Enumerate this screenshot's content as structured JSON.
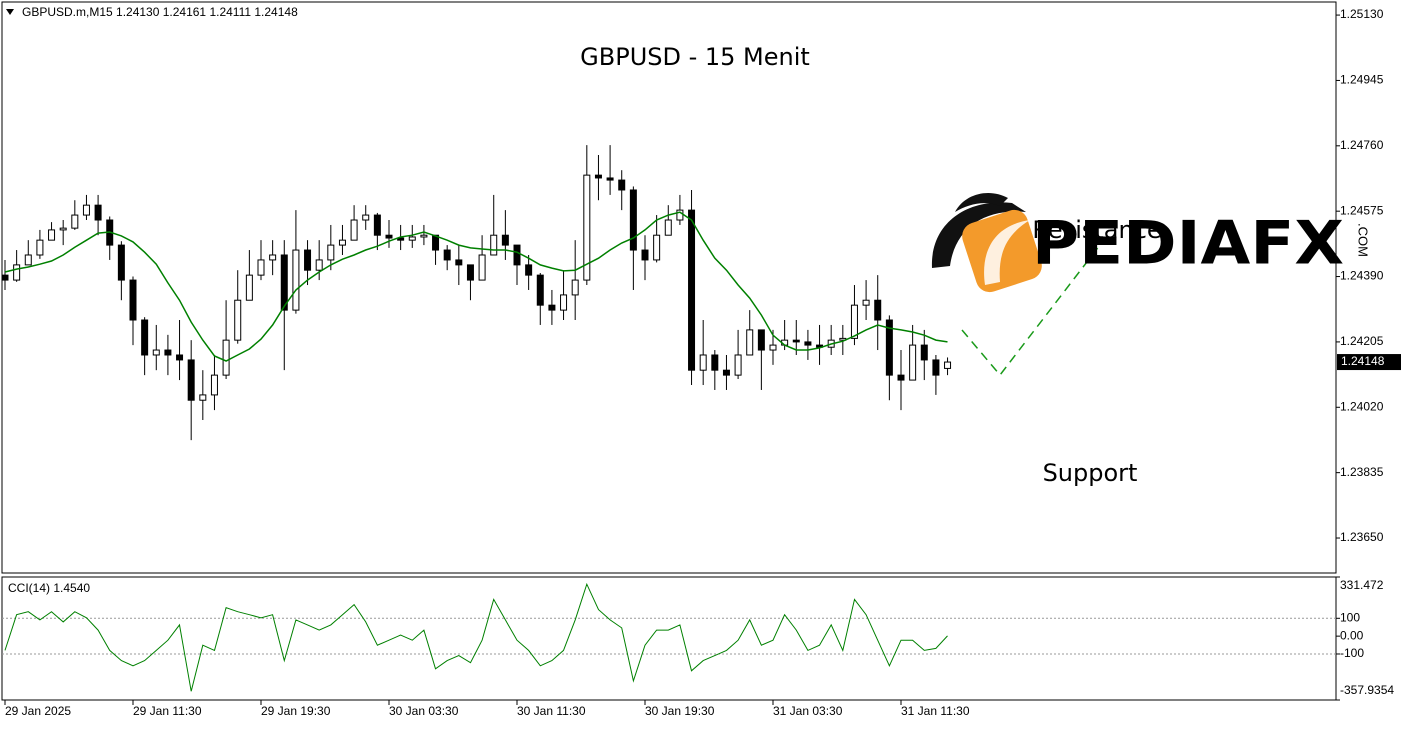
{
  "chart_data": [
    {
      "type": "candlestick",
      "header": "GBPUSD.m,M15  1.24130 1.24161 1.24111 1.24148",
      "title": "GBPUSD - 15 Menit",
      "annotations": [
        "Resistance",
        "Support"
      ],
      "watermark": "PEDIAFX",
      "watermark_suffix": ".COM",
      "categories": [
        "29 Jan 2025",
        null,
        null,
        null,
        null,
        null,
        null,
        null,
        null,
        null,
        null,
        "29 Jan 11:30",
        null,
        null,
        null,
        null,
        null,
        null,
        null,
        null,
        null,
        null,
        "29 Jan 19:30",
        null,
        null,
        null,
        null,
        null,
        null,
        null,
        null,
        null,
        null,
        "30 Jan 03:30",
        null,
        null,
        null,
        null,
        null,
        null,
        null,
        null,
        null,
        null,
        "30 Jan 11:30",
        null,
        null,
        null,
        null,
        null,
        null,
        null,
        null,
        null,
        null,
        "30 Jan 19:30",
        null,
        null,
        null,
        null,
        null,
        null,
        null,
        null,
        null,
        null,
        "31 Jan 03:30",
        null,
        null,
        null,
        null,
        null,
        null,
        null,
        null,
        null,
        null,
        "31 Jan 11:30",
        null,
        null,
        null,
        null
      ],
      "open": [
        1.24394,
        1.2438,
        1.24423,
        1.24451,
        1.24493,
        1.24522,
        1.24527,
        1.24564,
        1.24592,
        1.2455,
        1.24479,
        1.2438,
        1.24267,
        1.24168,
        1.24182,
        1.24168,
        1.24154,
        1.2404,
        1.24055,
        1.24111,
        1.2421,
        1.24323,
        1.24394,
        1.24437,
        1.24451,
        1.24295,
        1.24465,
        1.24408,
        1.24437,
        1.24479,
        1.24493,
        1.2455,
        1.24564,
        1.24507,
        1.24499,
        1.24493,
        1.24502,
        1.24507,
        1.24465,
        1.24437,
        1.24423,
        1.2438,
        1.24451,
        1.24507,
        1.24479,
        1.24423,
        1.24394,
        1.24309,
        1.24295,
        1.24338,
        1.2438,
        1.24677,
        1.24669,
        1.24663,
        1.24635,
        1.24465,
        1.24437,
        1.24507,
        1.2455,
        1.24578,
        1.24125,
        1.24168,
        1.24125,
        1.24111,
        1.24168,
        1.24239,
        1.24182,
        1.24196,
        1.2421,
        1.24205,
        1.24196,
        1.2419,
        1.2421,
        1.24215,
        1.24309,
        1.24323,
        1.24267,
        1.24111,
        1.24097,
        1.24196,
        1.24154,
        1.2413
      ],
      "high": [
        1.24437,
        1.24465,
        1.24493,
        1.24522,
        1.24544,
        1.2455,
        1.24606,
        1.24621,
        1.24621,
        1.2456,
        1.2449,
        1.2439,
        1.24275,
        1.24253,
        1.24225,
        1.24267,
        1.2421,
        1.24125,
        1.24168,
        1.24323,
        1.24408,
        1.24465,
        1.24493,
        1.24493,
        1.24493,
        1.24578,
        1.24493,
        1.24493,
        1.24536,
        1.24536,
        1.24592,
        1.24592,
        1.2457,
        1.2455,
        1.24536,
        1.24536,
        1.24536,
        1.24507,
        1.24479,
        1.24479,
        1.24423,
        1.24507,
        1.24621,
        1.24578,
        1.24479,
        1.24451,
        1.244,
        1.24352,
        1.24408,
        1.24493,
        1.24762,
        1.24734,
        1.24762,
        1.24691,
        1.24645,
        1.24507,
        1.24564,
        1.24592,
        1.24621,
        1.24635,
        1.24267,
        1.24182,
        1.24168,
        1.24239,
        1.24295,
        1.24239,
        1.24239,
        1.24267,
        1.24267,
        1.24239,
        1.24253,
        1.24253,
        1.24253,
        1.24366,
        1.2438,
        1.24394,
        1.2428,
        1.24182,
        1.24253,
        1.24239,
        1.24168,
        1.24161
      ],
      "low": [
        1.24352,
        1.24375,
        1.24423,
        1.2444,
        1.24493,
        1.24479,
        1.24522,
        1.2455,
        1.24507,
        1.24437,
        1.24323,
        1.24196,
        1.24111,
        1.24125,
        1.24111,
        1.24097,
        1.23927,
        1.23984,
        1.24012,
        1.241,
        1.242,
        1.24323,
        1.2438,
        1.24394,
        1.24125,
        1.24285,
        1.24366,
        1.2438,
        1.24408,
        1.24451,
        1.24493,
        1.24522,
        1.24465,
        1.24471,
        1.24465,
        1.24471,
        1.24479,
        1.24423,
        1.24408,
        1.24366,
        1.24323,
        1.2438,
        1.24451,
        1.24437,
        1.24366,
        1.24352,
        1.24253,
        1.24253,
        1.24267,
        1.24267,
        1.24366,
        1.24606,
        1.24621,
        1.24578,
        1.24352,
        1.2438,
        1.2443,
        1.24507,
        1.24536,
        1.24083,
        1.24083,
        1.24069,
        1.24069,
        1.241,
        1.24168,
        1.24069,
        1.2414,
        1.24182,
        1.24168,
        1.24154,
        1.2414,
        1.24168,
        1.24168,
        1.24196,
        1.24267,
        1.24182,
        1.2404,
        1.24012,
        1.24097,
        1.24097,
        1.24055,
        1.24111
      ],
      "close": [
        1.2438,
        1.24423,
        1.24451,
        1.24493,
        1.24522,
        1.24527,
        1.24564,
        1.24592,
        1.2455,
        1.24479,
        1.2438,
        1.24267,
        1.24168,
        1.24182,
        1.24168,
        1.24154,
        1.2404,
        1.24055,
        1.24111,
        1.2421,
        1.24323,
        1.24394,
        1.24437,
        1.24451,
        1.24295,
        1.24465,
        1.24408,
        1.24437,
        1.24479,
        1.24493,
        1.2455,
        1.24564,
        1.24507,
        1.24499,
        1.24493,
        1.24502,
        1.24507,
        1.24465,
        1.24437,
        1.24423,
        1.2438,
        1.24451,
        1.24507,
        1.24479,
        1.24423,
        1.24394,
        1.24309,
        1.24295,
        1.24338,
        1.2438,
        1.24677,
        1.24669,
        1.24663,
        1.24635,
        1.24465,
        1.24437,
        1.24507,
        1.2455,
        1.24578,
        1.24125,
        1.24168,
        1.24125,
        1.24111,
        1.24168,
        1.24239,
        1.24182,
        1.24196,
        1.2421,
        1.24205,
        1.24196,
        1.2419,
        1.2421,
        1.24215,
        1.24309,
        1.24323,
        1.24267,
        1.24111,
        1.24097,
        1.24196,
        1.24154,
        1.24111,
        1.24148
      ],
      "up_color": "#ffffff",
      "down_color": "#000000",
      "overlay": {
        "color": "#008000",
        "values": [
          1.24403,
          1.24411,
          1.24417,
          1.24425,
          1.24434,
          1.24451,
          1.24473,
          1.24493,
          1.24513,
          1.24516,
          1.24505,
          1.24488,
          1.24459,
          1.24425,
          1.24372,
          1.24323,
          1.24261,
          1.2421,
          1.24165,
          1.24151,
          1.24168,
          1.24185,
          1.24213,
          1.24253,
          1.24306,
          1.24352,
          1.2438,
          1.24403,
          1.24423,
          1.24439,
          1.24451,
          1.24465,
          1.24476,
          1.2449,
          1.24502,
          1.24507,
          1.24516,
          1.24505,
          1.24493,
          1.24479,
          1.24471,
          1.24468,
          1.24465,
          1.24465,
          1.24459,
          1.24442,
          1.24423,
          1.24414,
          1.24406,
          1.24408,
          1.24425,
          1.24442,
          1.24465,
          1.24485,
          1.24499,
          1.24522,
          1.2455,
          1.24564,
          1.24572,
          1.2455,
          1.24493,
          1.24442,
          1.24408,
          1.24366,
          1.24329,
          1.24281,
          1.24224,
          1.24196,
          1.24182,
          1.24182,
          1.24188,
          1.24199,
          1.24207,
          1.24222,
          1.24239,
          1.24253,
          1.24244,
          1.24239,
          1.24233,
          1.24224,
          1.2421,
          1.24205
        ]
      },
      "current_price": 1.24148,
      "ylim": [
        1.23551,
        1.25167
      ],
      "yticks": [
        {
          "value": 1.2513,
          "label": "1.25130"
        },
        1.24945,
        {
          "value": 1.2476,
          "label": "1.24760"
        },
        1.24575,
        {
          "value": 1.2439,
          "label": "1.24390"
        },
        1.24205,
        {
          "value": 1.2402,
          "label": "1.24020"
        },
        1.23835,
        {
          "value": 1.2365,
          "label": "1.23650"
        }
      ]
    },
    {
      "type": "line",
      "label": "CCI(14) 1.4540",
      "color": "#008000",
      "values": [
        -80,
        120,
        137,
        91,
        137,
        80,
        137,
        103,
        34,
        -80,
        -137,
        -166,
        -137,
        -80,
        -23,
        63,
        -309,
        -51,
        -80,
        160,
        137,
        120,
        103,
        120,
        -137,
        91,
        63,
        34,
        63,
        120,
        177,
        80,
        -51,
        -23,
        6,
        -23,
        34,
        -183,
        -137,
        -109,
        -149,
        -23,
        206,
        91,
        -23,
        -80,
        -166,
        -137,
        -80,
        91,
        291,
        149,
        91,
        46,
        -251,
        -51,
        34,
        34,
        63,
        -194,
        -137,
        -109,
        -80,
        -23,
        91,
        -51,
        -23,
        120,
        34,
        -80,
        -51,
        63,
        -80,
        206,
        120,
        -23,
        -166,
        -23,
        -23,
        -80,
        -69,
        1.454
      ],
      "levels": [
        100,
        -100
      ],
      "ylim": [
        -357.9354,
        331.472
      ],
      "yticks": [
        331.472,
        100,
        {
          "value": 0,
          "label": "0.00"
        },
        -100,
        -357.9354
      ]
    }
  ]
}
